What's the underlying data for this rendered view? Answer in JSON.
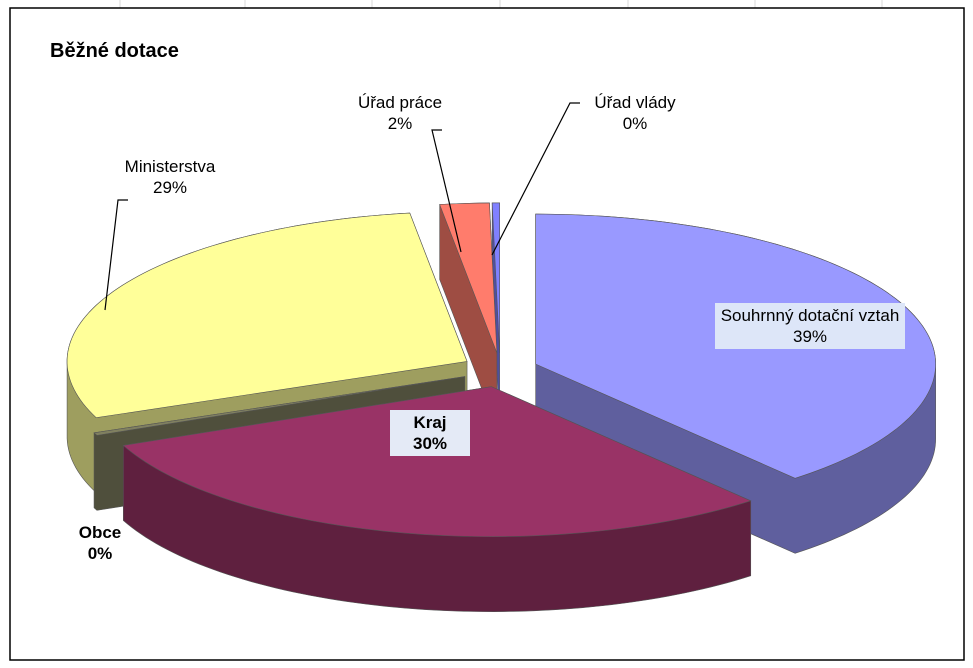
{
  "chart_data": {
    "type": "pie",
    "title": "Běžné dotace",
    "categories": [
      "Souhrnný dotační vztah",
      "Kraj",
      "Obce",
      "Ministerstva",
      "Úřad práce",
      "Úřad vlády"
    ],
    "values": [
      39,
      30,
      0.3,
      29,
      2,
      0.3
    ],
    "value_labels": [
      "39%",
      "30%",
      "0%",
      "29%",
      "2%",
      "0%"
    ],
    "colors": [
      "#9999ff",
      "#993366",
      "#808060",
      "#ffff99",
      "#ff7c6c",
      "#8080ff"
    ],
    "legend": false,
    "three_d": true
  }
}
